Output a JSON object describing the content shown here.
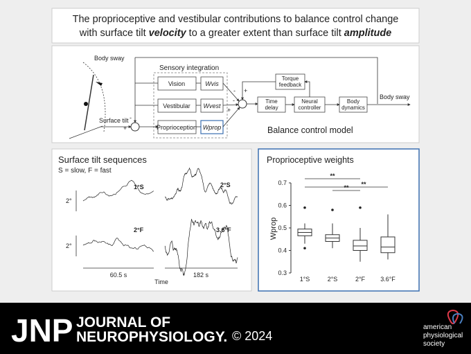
{
  "title": {
    "line1": "The proprioceptive and vestibular contributions to balance control change",
    "line2_a": "with surface tilt ",
    "line2_b": "velocity",
    "line2_c": " to a greater extent than surface tilt ",
    "line2_d": "amplitude"
  },
  "model": {
    "body_sway": "Body sway",
    "sensory_integration": "Sensory integration",
    "vision": "Vision",
    "wvis": "Wvis",
    "vestibular": "Vestibular",
    "wvest": "Wvest",
    "proprioception": "Proprioception",
    "wprop": "Wprop",
    "torque_feedback": [
      "Torque",
      "feedback"
    ],
    "time_delay": [
      "Time",
      "delay"
    ],
    "neural_controller": [
      "Neural",
      "controller"
    ],
    "body_dynamics": [
      "Body",
      "dynamics"
    ],
    "output": "Body sway",
    "surface_tilt": "Surface tilt",
    "signs": [
      "-",
      "-",
      "+",
      "+",
      "-",
      "+"
    ],
    "caption": "Balance control model"
  },
  "sequences": {
    "title": "Surface tilt sequences",
    "subtitle": "S = slow,  F = fast",
    "labels": [
      "1°S",
      "2°S",
      "2°F",
      "3.6°F"
    ],
    "scale": [
      "2°",
      "2°"
    ],
    "durations": [
      "60.5 s",
      "182 s"
    ],
    "xlabel": "Time"
  },
  "weights": {
    "title": "Proprioceptive weights",
    "ylabel": "Wprop",
    "categories": [
      "1°S",
      "2°S",
      "2°F",
      "3.6°F"
    ],
    "ylim": [
      0.3,
      0.7
    ],
    "yticks": [
      0.3,
      0.4,
      0.5,
      0.6,
      0.7
    ],
    "boxes": [
      {
        "whisker_low": 0.43,
        "q1": 0.465,
        "median": 0.48,
        "q3": 0.495,
        "whisker_high": 0.52,
        "outliers": [
          0.59,
          0.41
        ]
      },
      {
        "whisker_low": 0.41,
        "q1": 0.44,
        "median": 0.455,
        "q3": 0.47,
        "whisker_high": 0.52,
        "outliers": [
          0.58
        ]
      },
      {
        "whisker_low": 0.35,
        "q1": 0.4,
        "median": 0.42,
        "q3": 0.445,
        "whisker_high": 0.5,
        "outliers": [
          0.59
        ]
      },
      {
        "whisker_low": 0.36,
        "q1": 0.39,
        "median": 0.415,
        "q3": 0.46,
        "whisker_high": 0.56,
        "outliers": []
      }
    ],
    "significance": [
      "**",
      "**",
      "**"
    ]
  },
  "footer": {
    "journal_abbr": "JNP",
    "journal_line1": "JOURNAL OF",
    "journal_line2": "NEUROPHYSIOLOGY.",
    "year": "© 2024",
    "society": [
      "american",
      "physiological",
      "society"
    ]
  }
}
